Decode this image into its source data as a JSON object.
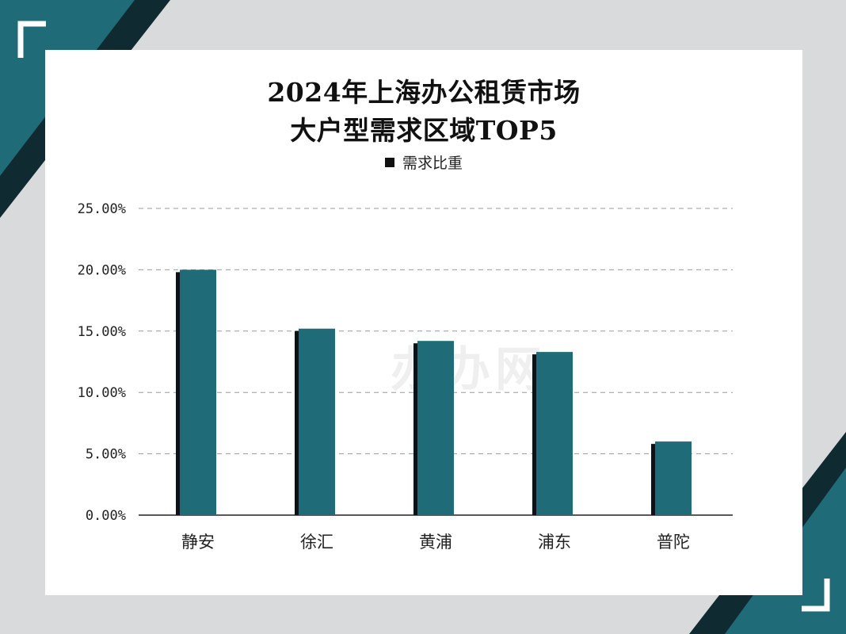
{
  "colors": {
    "bar": "#1f6b77",
    "bar_shadow": "#0c1316",
    "accent_dark": "#0f2a30",
    "accent_teal": "#1f6b77",
    "background": "#d9dadb"
  },
  "watermark": "办办网",
  "chart_data": {
    "type": "bar",
    "title": "2024年上海办公租赁市场",
    "subtitle": "大户型需求区域TOP5",
    "legend": {
      "position": "top",
      "entries": [
        "需求比重"
      ]
    },
    "categories": [
      "静安",
      "徐汇",
      "黄浦",
      "浦东",
      "普陀"
    ],
    "series": [
      {
        "name": "需求比重",
        "values": [
          20.0,
          15.2,
          14.2,
          13.3,
          6.0
        ]
      }
    ],
    "y_ticks": [
      "0.00%",
      "5.00%",
      "10.00%",
      "15.00%",
      "20.00%",
      "25.00%"
    ],
    "ylim": [
      0,
      25
    ],
    "grid": true,
    "unit": "%"
  }
}
